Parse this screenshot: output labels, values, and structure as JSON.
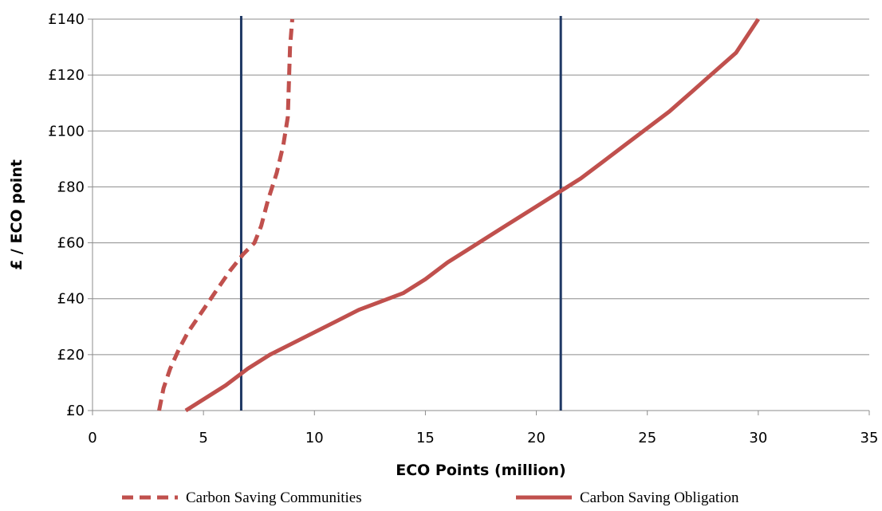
{
  "chart_data": {
    "type": "line",
    "xlabel": "ECO Points (million)",
    "ylabel": "£ / ECO point",
    "xlim": [
      0,
      35
    ],
    "ylim": [
      0,
      140
    ],
    "x_ticks": [
      "0",
      "5",
      "10",
      "15",
      "20",
      "25",
      "30",
      "35"
    ],
    "y_ticks": [
      "£0",
      "£20",
      "£40",
      "£60",
      "£80",
      "£100",
      "£120",
      "£140"
    ],
    "grid": "horizontal",
    "legend_position": "bottom",
    "series": [
      {
        "name": "Carbon Saving Communities",
        "style": "dashed",
        "color": "#c0504d",
        "x": [
          3.0,
          3.2,
          3.5,
          3.9,
          4.3,
          4.9,
          5.5,
          6.2,
          6.8,
          7.3,
          7.6,
          7.9,
          8.3,
          8.6,
          8.8,
          8.9,
          9.0
        ],
        "y": [
          0,
          8,
          15,
          22,
          28,
          35,
          42,
          50,
          56,
          60,
          66,
          75,
          85,
          95,
          105,
          130,
          140
        ]
      },
      {
        "name": "Carbon Saving Obligation",
        "style": "solid",
        "color": "#c0504d",
        "x": [
          4.2,
          5.0,
          6.0,
          7.0,
          8.0,
          9.0,
          10.0,
          11.0,
          12.0,
          13.0,
          14.0,
          15.0,
          16.0,
          17.0,
          18.0,
          19.0,
          20.0,
          21.0,
          22.0,
          23.0,
          24.0,
          25.0,
          26.0,
          27.0,
          28.0,
          29.0,
          30.0
        ],
        "y": [
          0,
          4,
          9,
          15,
          20,
          24,
          28,
          32,
          36,
          39,
          42,
          47,
          53,
          58,
          63,
          68,
          73,
          78,
          83,
          89,
          95,
          101,
          107,
          114,
          121,
          128,
          140
        ]
      }
    ],
    "reference_lines": {
      "color": "#1f3864",
      "x": [
        6.7,
        21.1
      ]
    }
  }
}
